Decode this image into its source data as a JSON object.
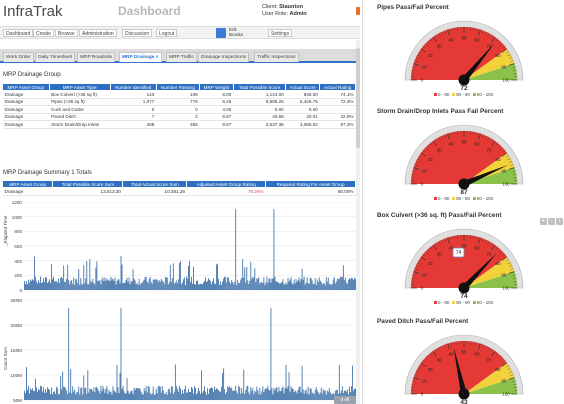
{
  "app": {
    "logo": "InfraTrak",
    "page_title": "Dashboard",
    "client_label": "Client:",
    "client_name": "Staunton",
    "role_label": "User Role:",
    "role_name": "Admin"
  },
  "nav": {
    "items": [
      "Dashboard",
      "Create",
      "Browse",
      "Administration",
      "Discussion",
      "Logout"
    ],
    "user_line1": "Erik",
    "user_line2": "Brooks",
    "settings_label": "Settings"
  },
  "sub_tabs": {
    "items": [
      "Work Order",
      "Daily Timesheet",
      "MRP Roadside",
      "MRP Drainage",
      "MRP Traffic",
      "Drainage Inspections",
      "Traffic Inspections"
    ],
    "active_index": 3
  },
  "group_table": {
    "title": "MRP Drainage Group",
    "headers": [
      "MRP Asset Group",
      "MRP Asset Type",
      "Number Identified",
      "Number Passing",
      "MRP Weight",
      "Total Possible Score",
      "Actual Score",
      "Actual Rating"
    ],
    "rows": [
      [
        "Drainage",
        "Box Culvert (>36 sq ft)",
        "143",
        "106",
        "8.00",
        "1,144.00",
        "848.00",
        "74.1%"
      ],
      [
        "Drainage",
        "Pipes (<36 sq ft)",
        "1,077",
        "779",
        "8.25",
        "8,885.25",
        "6,426.75",
        "72.3%"
      ],
      [
        "Drainage",
        "Curb and Gutter",
        "0",
        "0",
        "4.00",
        "0.00",
        "0.00",
        ""
      ],
      [
        "Drainage",
        "Paved Ditch",
        "7",
        "3",
        "6.67",
        "46.69",
        "20.01",
        "42.9%"
      ],
      [
        "Drainage",
        "Storm Drain/Drop Inlets",
        "408",
        "356",
        "8.67",
        "3,537.36",
        "3,086.52",
        "87.3%"
      ]
    ]
  },
  "summary_table": {
    "title": "MRP Drainage Summary 1 Totals",
    "headers": [
      "MRP Asset Group",
      "Total Possible Score Sum",
      "Total Actual Score Sum",
      "Adjusted Asset Group Rating",
      "Required Rating For Asset Group"
    ],
    "rows": [
      [
        "Drainage",
        "13,613.30",
        "10,381.28",
        "76.26%",
        "80.00%"
      ]
    ]
  },
  "chart1": {
    "ylabel": "_Elapsed Time",
    "ticks": [
      "1200",
      "1000",
      "800",
      "600",
      "400",
      "200",
      "0"
    ]
  },
  "chart2": {
    "ylabel": "Count Sum",
    "ticks": [
      "250M",
      "200M",
      "150M",
      "100M",
      "50M"
    ],
    "badge": "3 eff"
  },
  "gauges": [
    {
      "title": "Pipes Pass/Fail Percent",
      "value": 72,
      "label": "72"
    },
    {
      "title": "Storm Drain/Drop Inlets Pass Fail Percent",
      "value": 87,
      "label": "87"
    },
    {
      "title": "Box Culvert (>36 sq. ft) Pass/Fail Percent",
      "value": 74,
      "label": "74",
      "tooltip": "74"
    },
    {
      "title": "Paved Ditch Pass/Fail Percent",
      "value": 43,
      "label": "43"
    }
  ],
  "gauge_legend": [
    "0 - 80",
    "80 - 90",
    "90 - 100"
  ],
  "gauge_tick_labels": [
    "0",
    "10",
    "20",
    "30",
    "40",
    "50",
    "60",
    "70",
    "80",
    "90",
    "100"
  ],
  "colors": {
    "accent": "#2d6fc2",
    "red_band": "#e53935",
    "yellow_band": "#f2d13b",
    "green_band": "#8bc34a",
    "bar": "#3b6fa8"
  },
  "chart_data": [
    {
      "type": "bar",
      "ylabel": "_Elapsed Time",
      "ylim": [
        0,
        1200
      ],
      "categories": [],
      "values": []
    },
    {
      "type": "bar",
      "ylabel": "Count Sum",
      "ylim": [
        0,
        250000000
      ],
      "categories": [],
      "values": []
    }
  ]
}
